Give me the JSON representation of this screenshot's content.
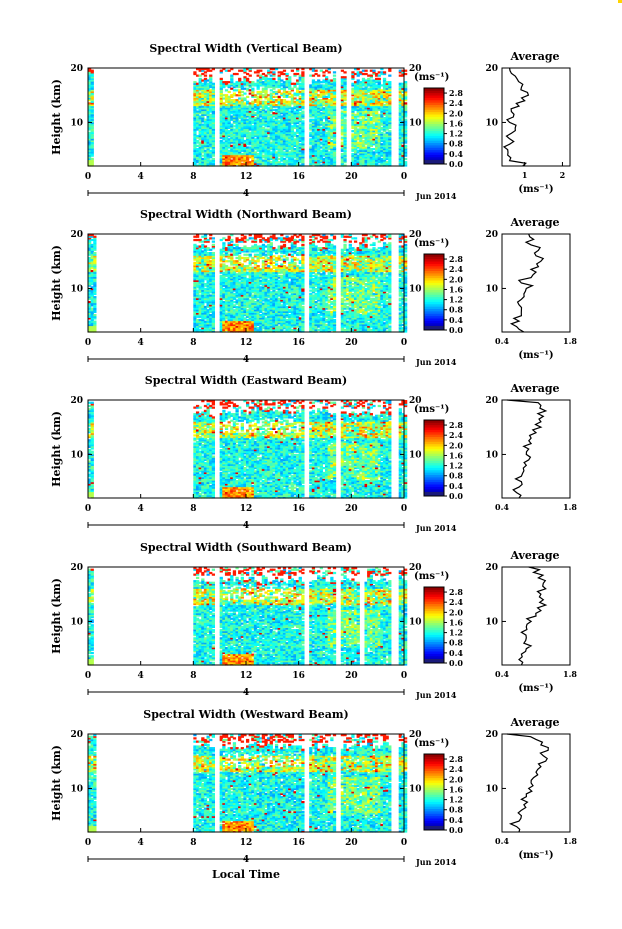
{
  "figure": {
    "x_axis_label": "Local Time",
    "date_label": "Jun 2014",
    "y_axis_label": "Height (km)",
    "color_unit": "(ms⁻¹)",
    "avg_title": "Average",
    "avg_unit": "(ms⁻¹)"
  },
  "chart_data": [
    {
      "type": "heatmap",
      "title": "Spectral Width (Vertical Beam)",
      "xlabel": "Local Time",
      "ylabel": "Height (km)",
      "x_ticks": [
        "0",
        "4",
        "8",
        "12",
        "16",
        "20",
        "0"
      ],
      "x_range": [
        0,
        24
      ],
      "y_ticks": [
        "10",
        "20"
      ],
      "y_range": [
        2,
        20
      ],
      "date_marker": "4",
      "date_label": "Jun 2014",
      "colorbar": {
        "unit": "(ms⁻¹)",
        "range": [
          0.0,
          3.0
        ],
        "ticks": [
          "0.0",
          "0.4",
          "0.8",
          "1.2",
          "1.6",
          "2.0",
          "2.4",
          "2.8"
        ]
      },
      "data_gaps_hours": [
        [
          0.5,
          8.0
        ],
        [
          9.6,
          10.0
        ],
        [
          16.3,
          16.7
        ],
        [
          18.8,
          19.2
        ],
        [
          19.6,
          20.0
        ],
        [
          23.0,
          23.5
        ]
      ],
      "average_profile": {
        "title": "Average",
        "xlabel": "(ms⁻¹)",
        "x_ticks": [
          "1",
          "2"
        ],
        "x_range": [
          0.4,
          2.2
        ],
        "y_ticks": [
          "10",
          "20"
        ],
        "height_km": [
          2,
          3,
          4,
          5,
          6,
          7,
          8,
          9,
          10,
          11,
          12,
          13,
          14,
          15,
          16,
          17,
          18,
          19,
          20
        ],
        "width_ms": [
          0.95,
          0.6,
          0.55,
          0.55,
          0.6,
          0.6,
          0.65,
          0.75,
          0.6,
          0.7,
          0.65,
          0.85,
          1.0,
          1.1,
          0.9,
          0.95,
          0.8,
          0.65,
          0.6
        ]
      }
    },
    {
      "type": "heatmap",
      "title": "Spectral Width (Northward Beam)",
      "xlabel": "Local Time",
      "ylabel": "Height (km)",
      "x_ticks": [
        "0",
        "4",
        "8",
        "12",
        "16",
        "20",
        "0"
      ],
      "x_range": [
        0,
        24
      ],
      "y_ticks": [
        "10",
        "20"
      ],
      "y_range": [
        2,
        20
      ],
      "date_marker": "4",
      "date_label": "Jun 2014",
      "colorbar": {
        "unit": "(ms⁻¹)",
        "range": [
          0.0,
          3.0
        ],
        "ticks": [
          "0.0",
          "0.4",
          "0.8",
          "1.2",
          "1.6",
          "2.0",
          "2.4",
          "2.8"
        ]
      },
      "data_gaps_hours": [
        [
          0.6,
          8.0
        ],
        [
          9.6,
          10.0
        ],
        [
          16.3,
          16.7
        ],
        [
          18.8,
          19.2
        ],
        [
          23.0,
          23.5
        ]
      ],
      "average_profile": {
        "title": "Average",
        "xlabel": "(ms⁻¹)",
        "x_ticks": [
          "0.4",
          "1.8"
        ],
        "x_range": [
          0.4,
          1.8
        ],
        "y_ticks": [
          "10",
          "20"
        ],
        "height_km": [
          2,
          3,
          4,
          5,
          6,
          7,
          8,
          9,
          10,
          11,
          12,
          13,
          14,
          15,
          16,
          17,
          18,
          19,
          20
        ],
        "width_ms": [
          0.85,
          0.7,
          0.75,
          0.8,
          0.8,
          0.75,
          0.8,
          0.85,
          0.9,
          0.8,
          1.0,
          1.1,
          1.15,
          1.2,
          1.1,
          1.15,
          1.0,
          1.05,
          0.95
        ]
      }
    },
    {
      "type": "heatmap",
      "title": "Spectral Width (Eastward Beam)",
      "xlabel": "Local Time",
      "ylabel": "Height (km)",
      "x_ticks": [
        "0",
        "4",
        "8",
        "12",
        "16",
        "20",
        "0"
      ],
      "x_range": [
        0,
        24
      ],
      "y_ticks": [
        "10",
        "20"
      ],
      "y_range": [
        2,
        20
      ],
      "date_marker": "4",
      "date_label": "Jun 2014",
      "colorbar": {
        "unit": "(ms⁻¹)",
        "range": [
          0.0,
          3.0
        ],
        "ticks": [
          "0.0",
          "0.4",
          "0.8",
          "1.2",
          "1.6",
          "2.0",
          "2.4",
          "2.8"
        ]
      },
      "data_gaps_hours": [
        [
          0.5,
          8.0
        ],
        [
          9.6,
          10.0
        ],
        [
          16.3,
          16.7
        ],
        [
          18.8,
          19.2
        ],
        [
          23.0,
          23.5
        ]
      ],
      "average_profile": {
        "title": "Average",
        "xlabel": "",
        "x_ticks": [
          "0.4",
          "1.8"
        ],
        "x_range": [
          0.4,
          1.8
        ],
        "y_ticks": [
          "10",
          "20"
        ],
        "height_km": [
          2,
          3,
          4,
          5,
          6,
          7,
          8,
          9,
          10,
          11,
          12,
          13,
          14,
          15,
          16,
          17,
          18,
          19,
          20
        ],
        "width_ms": [
          0.75,
          0.7,
          0.75,
          0.8,
          0.8,
          0.85,
          0.9,
          0.95,
          0.9,
          0.95,
          1.0,
          1.0,
          1.1,
          1.2,
          1.2,
          1.25,
          1.3,
          1.2,
          0.5
        ]
      }
    },
    {
      "type": "heatmap",
      "title": "Spectral Width (Southward Beam)",
      "xlabel": "Local Time",
      "ylabel": "Height (km)",
      "x_ticks": [
        "0",
        "4",
        "8",
        "12",
        "16",
        "20",
        "0"
      ],
      "x_range": [
        0,
        24
      ],
      "y_ticks": [
        "10",
        "20"
      ],
      "y_range": [
        2,
        20
      ],
      "date_marker": "4",
      "date_label": "Jun 2014",
      "colorbar": {
        "unit": "(ms⁻¹)",
        "range": [
          0.0,
          3.0
        ],
        "ticks": [
          "0.0",
          "0.4",
          "0.8",
          "1.2",
          "1.6",
          "2.0",
          "2.4",
          "2.8"
        ]
      },
      "data_gaps_hours": [
        [
          0.5,
          8.0
        ],
        [
          9.6,
          10.0
        ],
        [
          16.3,
          16.7
        ],
        [
          18.8,
          19.2
        ],
        [
          20.6,
          21.0
        ],
        [
          23.0,
          23.5
        ]
      ],
      "average_profile": {
        "title": "Average",
        "xlabel": "(ms⁻¹)",
        "x_ticks": [
          "0.4",
          "1.8"
        ],
        "x_range": [
          0.4,
          1.8
        ],
        "y_ticks": [
          "10",
          "20"
        ],
        "height_km": [
          2,
          3,
          4,
          5,
          6,
          7,
          8,
          9,
          10,
          11,
          12,
          13,
          14,
          15,
          16,
          17,
          18,
          19,
          20
        ],
        "width_ms": [
          0.8,
          0.75,
          0.8,
          0.9,
          0.85,
          0.9,
          0.8,
          0.9,
          1.0,
          1.1,
          1.2,
          1.3,
          1.25,
          1.2,
          1.3,
          1.25,
          1.15,
          1.05,
          0.95
        ]
      }
    },
    {
      "type": "heatmap",
      "title": "Spectral Width (Westward Beam)",
      "xlabel": "Local Time",
      "ylabel": "Height (km)",
      "x_ticks": [
        "0",
        "4",
        "8",
        "12",
        "16",
        "20",
        "0"
      ],
      "x_range": [
        0,
        24
      ],
      "y_ticks": [
        "10",
        "20"
      ],
      "y_range": [
        2,
        20
      ],
      "date_marker": "4",
      "date_label": "Jun 2014",
      "colorbar": {
        "unit": "(ms⁻¹)",
        "range": [
          0.0,
          3.0
        ],
        "ticks": [
          "0.0",
          "0.4",
          "0.8",
          "1.2",
          "1.6",
          "2.0",
          "2.4",
          "2.8"
        ]
      },
      "data_gaps_hours": [
        [
          0.6,
          8.0
        ],
        [
          9.6,
          10.0
        ],
        [
          16.3,
          16.7
        ],
        [
          18.8,
          19.2
        ],
        [
          23.0,
          23.5
        ]
      ],
      "average_profile": {
        "title": "Average",
        "xlabel": "(ms⁻¹)",
        "x_ticks": [
          "0.4",
          "1.8"
        ],
        "x_range": [
          0.4,
          1.8
        ],
        "y_ticks": [
          "10",
          "20"
        ],
        "height_km": [
          2,
          3,
          4,
          5,
          6,
          7,
          8,
          9,
          10,
          11,
          12,
          13,
          14,
          15,
          16,
          17,
          18,
          19,
          20
        ],
        "width_ms": [
          0.75,
          0.7,
          0.75,
          0.8,
          0.8,
          0.85,
          0.8,
          0.9,
          0.95,
          1.0,
          1.05,
          1.1,
          1.2,
          1.3,
          1.25,
          1.35,
          1.2,
          1.1,
          0.5
        ]
      }
    }
  ]
}
